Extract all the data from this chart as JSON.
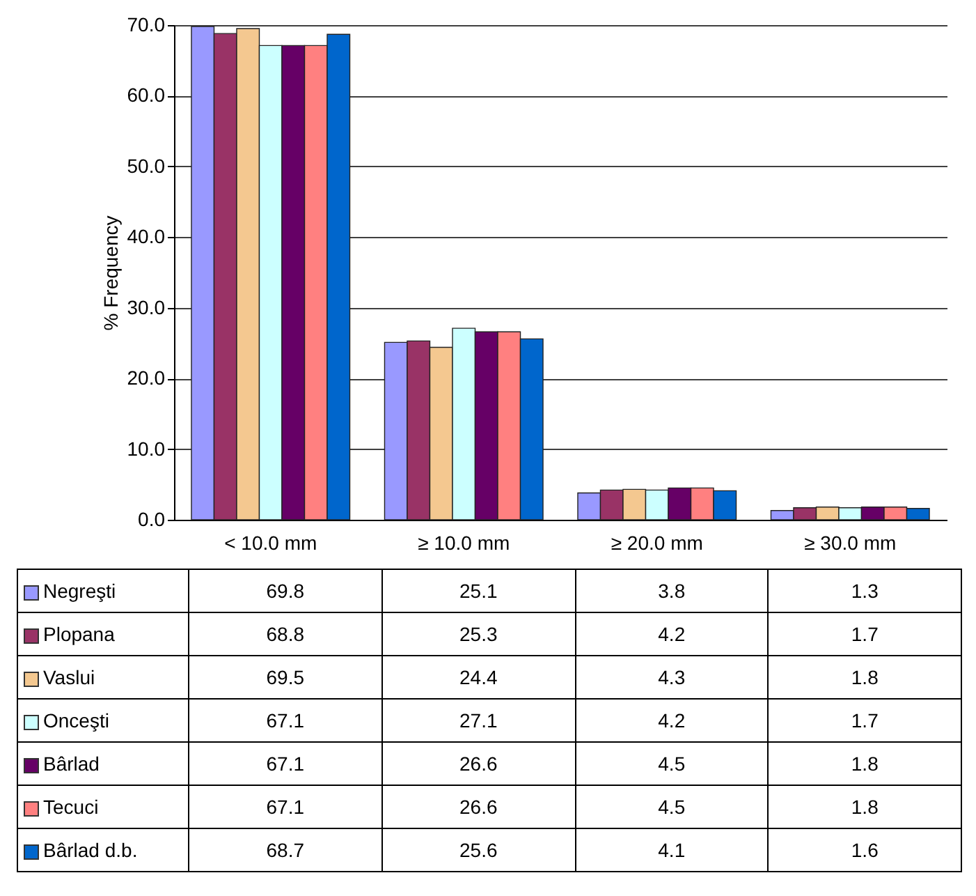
{
  "chart_data": {
    "type": "bar",
    "ylabel": "% Frequency",
    "categories": [
      "< 10.0 mm",
      "≥ 10.0 mm",
      "≥ 20.0 mm",
      "≥ 30.0 mm"
    ],
    "series": [
      {
        "name": "Negreşti",
        "color": "#9999ff",
        "values": [
          69.8,
          25.1,
          3.8,
          1.3
        ]
      },
      {
        "name": "Plopana",
        "color": "#993366",
        "values": [
          68.8,
          25.3,
          4.2,
          1.7
        ]
      },
      {
        "name": "Vaslui",
        "color": "#f4c890",
        "values": [
          69.5,
          24.4,
          4.3,
          1.8
        ]
      },
      {
        "name": "Onceşti",
        "color": "#ccffff",
        "values": [
          67.1,
          27.1,
          4.2,
          1.7
        ]
      },
      {
        "name": "Bârlad",
        "color": "#660066",
        "values": [
          67.1,
          26.6,
          4.5,
          1.8
        ]
      },
      {
        "name": "Tecuci",
        "color": "#ff8080",
        "values": [
          67.1,
          26.6,
          4.5,
          1.8
        ]
      },
      {
        "name": "Bârlad d.b.",
        "color": "#0066cc",
        "values": [
          68.7,
          25.6,
          4.1,
          1.6
        ]
      }
    ],
    "ylim": [
      0,
      70
    ],
    "yticks": [
      {
        "value": 0,
        "label": "0.0"
      },
      {
        "value": 10,
        "label": "10.0"
      },
      {
        "value": 20,
        "label": "20.0"
      },
      {
        "value": 30,
        "label": "30.0"
      },
      {
        "value": 40,
        "label": "40.0"
      },
      {
        "value": 50,
        "label": "50.0"
      },
      {
        "value": 60,
        "label": "60.0"
      },
      {
        "value": 70,
        "label": "70.0"
      }
    ],
    "grid": "y",
    "legend": "bottom",
    "data_labels": true
  }
}
